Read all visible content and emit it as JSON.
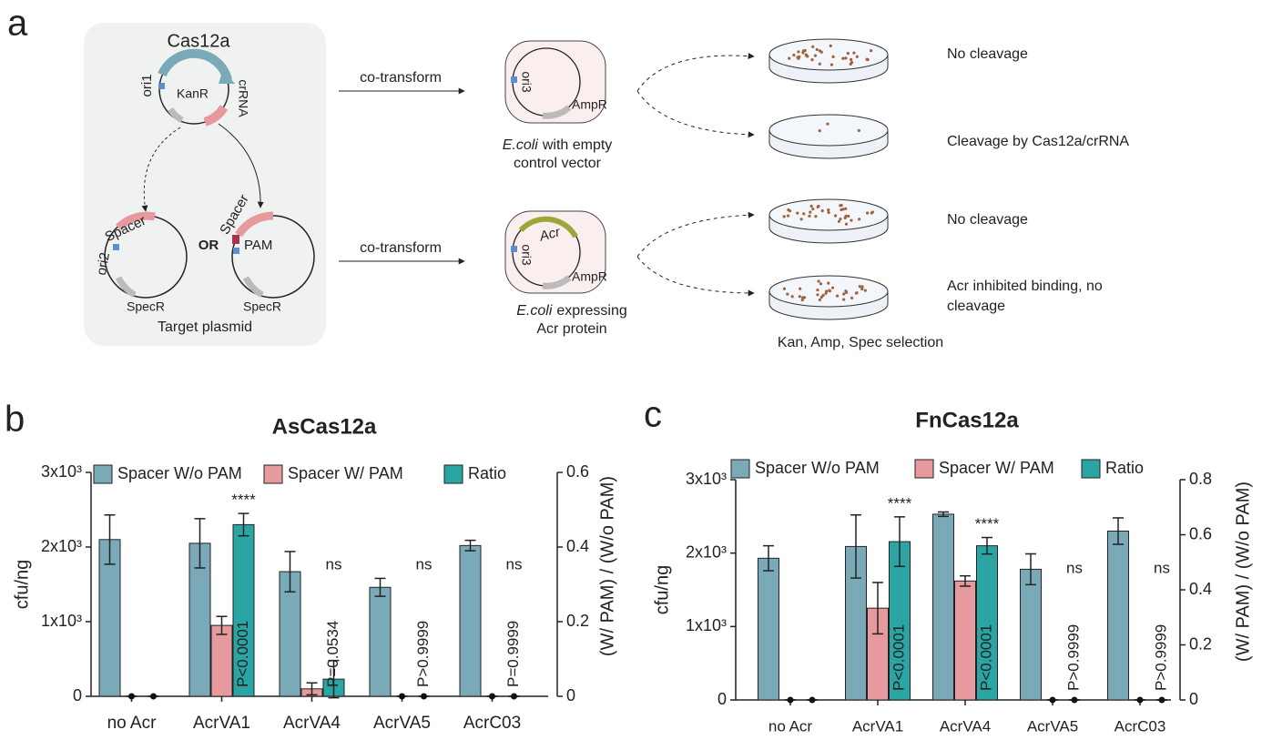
{
  "diagram": {
    "panel_label": "a",
    "cas_plasmid": {
      "gene": "Cas12a",
      "origin": "ori1",
      "marker": "KanR",
      "guide": "crRNA"
    },
    "target_plasmids": [
      {
        "origin": "ori2",
        "spacer": "Spacer",
        "marker": "SpecR"
      },
      {
        "spacer": "Spacer",
        "pam": "PAM",
        "marker": "SpecR"
      }
    ],
    "or_label": "OR",
    "target_label": "Target plasmid",
    "transformations": [
      {
        "arrow": "co-transform",
        "origin": "ori3",
        "marker": "AmpR",
        "species": "E.coli",
        "caption_1": "with empty",
        "caption_2": "control vector"
      },
      {
        "arrow": "co-transform",
        "origin": "ori3",
        "marker": "AmpR",
        "insert": "Acr",
        "species": "E.coli",
        "caption_1": "expressing",
        "caption_2": "Acr protein"
      }
    ],
    "outcomes": [
      [
        "No cleavage"
      ],
      [
        "Cleavage by Cas12a/crRNA"
      ],
      [
        "No cleavage"
      ],
      [
        "Acr inhibited binding, no",
        "cleavage"
      ]
    ],
    "selection": "Kan, Amp, Spec selection"
  },
  "chart_data": [
    {
      "type": "bar",
      "panel_label": "b",
      "title": "AsCas12a",
      "y_label": "cfu/ng",
      "y2_label": "(W/ PAM) / (W/o PAM)",
      "categories": [
        "no Acr",
        "AcrVA1",
        "AcrVA4",
        "AcrVA5",
        "AcrC03"
      ],
      "series": [
        {
          "name": "Spacer W/o PAM",
          "color": "#7aa9b8",
          "values": [
            2100,
            2050,
            1670,
            1460,
            2020
          ],
          "errors": [
            330,
            330,
            270,
            120,
            70
          ]
        },
        {
          "name": "Spacer W/ PAM",
          "color": "#e79a9d",
          "values": [
            0,
            950,
            100,
            0,
            0
          ],
          "errors": [
            0,
            120,
            80,
            0,
            0
          ]
        },
        {
          "name": "Ratio",
          "color": "#2ba5a3",
          "axis": "y2",
          "values": [
            0,
            0.46,
            0.046,
            0,
            0
          ],
          "errors": [
            0,
            0.03,
            0.05,
            0,
            0
          ]
        }
      ],
      "significance": [
        null,
        "****",
        "ns",
        "ns",
        "ns"
      ],
      "p_values": [
        null,
        "P<0.0001",
        "P=0.0534",
        "P>0.9999",
        "P=0.9999"
      ],
      "ylim": [
        0,
        3000
      ],
      "yticks": [
        0,
        {
          "value": 1000,
          "label": "1x10³"
        },
        {
          "value": 2000,
          "label": "2x10³"
        },
        {
          "value": 3000,
          "label": "3x10³"
        }
      ],
      "y2lim": [
        0,
        0.6
      ],
      "y2ticks": [
        0,
        0.2,
        0.4,
        0.6
      ]
    },
    {
      "type": "bar",
      "panel_label": "c",
      "title": "FnCas12a",
      "y_label": "cfu/ng",
      "y2_label": "(W/ PAM) / (W/o PAM)",
      "categories": [
        "no Acr",
        "AcrVA1",
        "AcrVA4",
        "AcrVA5",
        "AcrC03"
      ],
      "series": [
        {
          "name": "Spacer W/o PAM",
          "color": "#7aa9b8",
          "values": [
            1930,
            2090,
            2530,
            1780,
            2300
          ],
          "errors": [
            170,
            430,
            30,
            210,
            180
          ]
        },
        {
          "name": "Spacer W/ PAM",
          "color": "#e79a9d",
          "values": [
            0,
            1250,
            1620,
            0,
            0
          ],
          "errors": [
            0,
            350,
            70,
            0,
            0
          ]
        },
        {
          "name": "Ratio",
          "color": "#2ba5a3",
          "axis": "y2",
          "values": [
            0,
            0.575,
            0.56,
            0,
            0
          ],
          "errors": [
            0,
            0.09,
            0.03,
            0,
            0
          ]
        }
      ],
      "significance": [
        null,
        "****",
        "****",
        "ns",
        "ns"
      ],
      "p_values": [
        null,
        "P<0.0001",
        "P<0.0001",
        "P>0.9999",
        "P>0.9999"
      ],
      "ylim": [
        0,
        3000
      ],
      "yticks": [
        0,
        {
          "value": 1000,
          "label": "1x10³"
        },
        {
          "value": 2000,
          "label": "2x10³"
        },
        {
          "value": 3000,
          "label": "3x10³"
        }
      ],
      "y2lim": [
        0,
        0.8
      ],
      "y2ticks": [
        0,
        0.2,
        0.4,
        0.6,
        0.8
      ]
    }
  ]
}
